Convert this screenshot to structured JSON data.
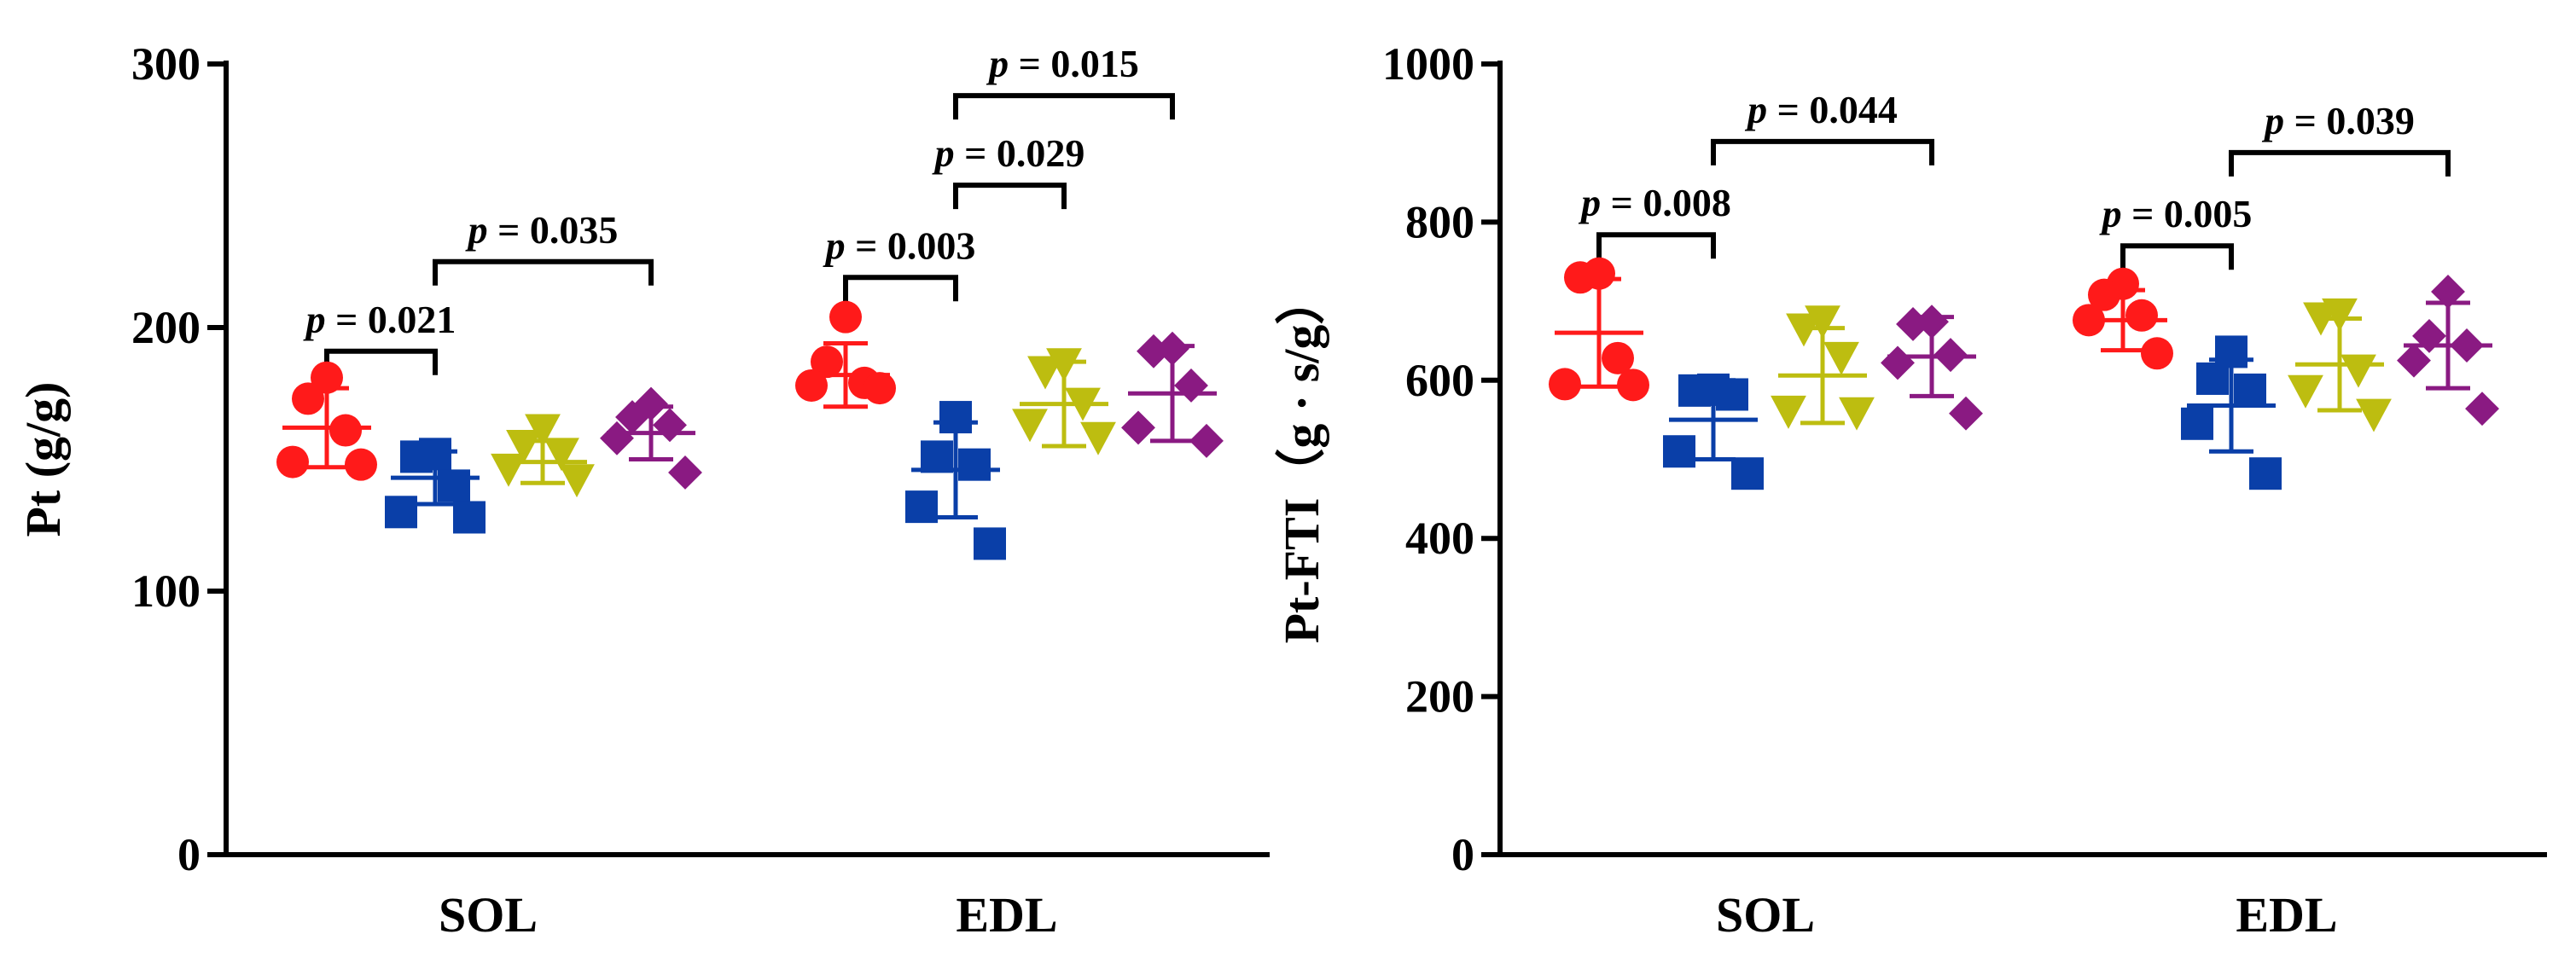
{
  "colors": {
    "groups": [
      "#ff1a1a",
      "#0a3fa8",
      "#bdbd10",
      "#8a1a82"
    ],
    "axis": "#000000"
  },
  "chart_data": [
    {
      "type": "scatter",
      "subtype": "dot-plot-mean-sd",
      "title": "",
      "xlabel": "",
      "ylabel": "Pt (g/g)",
      "ylim": [
        0,
        300
      ],
      "yticks": [
        "0",
        "100",
        "200",
        "300"
      ],
      "categories": [
        "SOL",
        "EDL"
      ],
      "groups": [
        {
          "marker": "circle",
          "color": "#ff1a1a",
          "points": [
            [
              181,
              173,
              161,
              149,
              148
            ],
            [
              204,
              187,
              179,
              178,
              177
            ]
          ],
          "mean": [
            162,
            182
          ],
          "sd": [
            15,
            12
          ]
        },
        {
          "marker": "square",
          "color": "#0a3fa8",
          "points": [
            [
              152,
              151,
              140,
              130,
              128
            ],
            [
              166,
              151,
              148,
              132,
              118
            ]
          ],
          "mean": [
            143,
            146
          ],
          "sd": [
            10,
            18
          ]
        },
        {
          "marker": "triangle-down",
          "color": "#bdbd10",
          "points": [
            [
              161,
              155,
              152,
              146,
              142
            ],
            [
              186,
              183,
              171,
              163,
              158
            ]
          ],
          "mean": [
            149,
            171
          ],
          "sd": [
            8,
            16
          ]
        },
        {
          "marker": "diamond",
          "color": "#8a1a82",
          "points": [
            [
              171,
              166,
              163,
              158,
              145
            ],
            [
              192,
              191,
              178,
              162,
              157
            ]
          ],
          "mean": [
            160,
            175
          ],
          "sd": [
            10,
            18
          ]
        }
      ],
      "annotations": [
        {
          "label": "p",
          "value": "= 0.021",
          "category": "SOL",
          "from_group": 0,
          "to_group": 1,
          "bracket_y": 191
        },
        {
          "label": "p",
          "value": "= 0.035",
          "category": "SOL",
          "from_group": 1,
          "to_group": 3,
          "bracket_y": 225
        },
        {
          "label": "p",
          "value": "= 0.003",
          "category": "EDL",
          "from_group": 0,
          "to_group": 1,
          "bracket_y": 219
        },
        {
          "label": "p",
          "value": "= 0.029",
          "category": "EDL",
          "from_group": 1,
          "to_group": 2,
          "bracket_y": 254
        },
        {
          "label": "p",
          "value": "= 0.015",
          "category": "EDL",
          "from_group": 1,
          "to_group": 3,
          "bracket_y": 288
        }
      ]
    },
    {
      "type": "scatter",
      "subtype": "dot-plot-mean-sd",
      "title": "",
      "xlabel": "",
      "ylabel": "Pt-FTI（g · s/g）",
      "ylim": [
        0,
        1000
      ],
      "yticks": [
        "0",
        "200",
        "400",
        "600",
        "800",
        "1000"
      ],
      "categories": [
        "SOL",
        "EDL"
      ],
      "groups": [
        {
          "marker": "circle",
          "color": "#ff1a1a",
          "points": [
            [
              735,
              730,
              628,
              595,
              594
            ],
            [
              722,
              708,
              682,
              676,
              634
            ]
          ],
          "mean": [
            660,
            676
          ],
          "sd": [
            68,
            38
          ]
        },
        {
          "marker": "square",
          "color": "#0a3fa8",
          "points": [
            [
              588,
              587,
              582,
              510,
              482
            ],
            [
              636,
              602,
              588,
              545,
              482
            ]
          ],
          "mean": [
            550,
            568
          ],
          "sd": [
            50,
            58
          ]
        },
        {
          "marker": "triangle-down",
          "color": "#bdbd10",
          "points": [
            [
              674,
              664,
              628,
              560,
              558
            ],
            [
              683,
              678,
              612,
              586,
              556
            ]
          ],
          "mean": [
            606,
            620
          ],
          "sd": [
            60,
            58
          ]
        },
        {
          "marker": "diamond",
          "color": "#8a1a82",
          "points": [
            [
              674,
              671,
              632,
              622,
              558
            ],
            [
              712,
              656,
              644,
              625,
              564
            ]
          ],
          "mean": [
            630,
            644
          ],
          "sd": [
            50,
            54
          ]
        }
      ],
      "annotations": [
        {
          "label": "p",
          "value": "= 0.008",
          "category": "SOL",
          "from_group": 0,
          "to_group": 1,
          "bracket_y": 784
        },
        {
          "label": "p",
          "value": "= 0.044",
          "category": "SOL",
          "from_group": 1,
          "to_group": 3,
          "bracket_y": 902
        },
        {
          "label": "p",
          "value": "= 0.005",
          "category": "EDL",
          "from_group": 0,
          "to_group": 1,
          "bracket_y": 770
        },
        {
          "label": "p",
          "value": "= 0.039",
          "category": "EDL",
          "from_group": 1,
          "to_group": 3,
          "bracket_y": 888
        }
      ]
    }
  ]
}
